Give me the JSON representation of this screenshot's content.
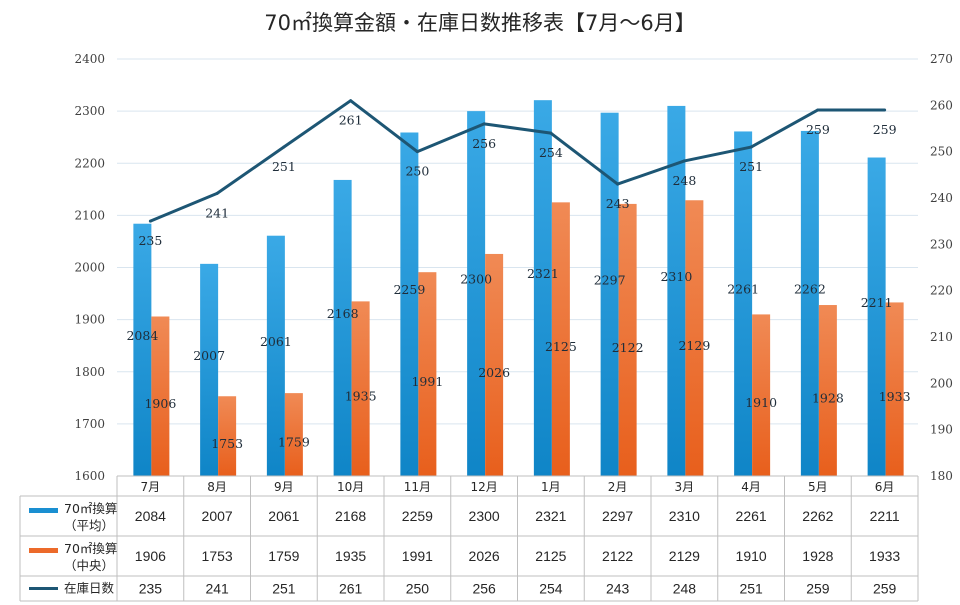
{
  "chart_data": {
    "type": "bar",
    "title": "70㎡換算金額・在庫日数推移表【7月～6月】",
    "categories": [
      "7月",
      "8月",
      "9月",
      "10月",
      "11月",
      "12月",
      "1月",
      "2月",
      "3月",
      "4月",
      "5月",
      "6月"
    ],
    "ylim": [
      1600,
      2400
    ],
    "y2lim": [
      180,
      270
    ],
    "y_ticks": [
      1600,
      1700,
      1800,
      1900,
      2000,
      2100,
      2200,
      2300,
      2400
    ],
    "y2_ticks": [
      180,
      190,
      200,
      210,
      220,
      230,
      240,
      250,
      260,
      270
    ],
    "grid": true,
    "legend": "data-table-bottom",
    "series": [
      {
        "name": "70㎡換算（平均）",
        "label_lines": [
          "70㎡換算",
          "（平均）"
        ],
        "type": "bar",
        "axis": "left",
        "color": "#1a8fd1",
        "values": [
          2084,
          2007,
          2061,
          2168,
          2259,
          2300,
          2321,
          2297,
          2310,
          2261,
          2262,
          2211
        ]
      },
      {
        "name": "70㎡換算（中央）",
        "label_lines": [
          "70㎡換算",
          "（中央）"
        ],
        "type": "bar",
        "axis": "left",
        "color": "#ec6a2a",
        "values": [
          1906,
          1753,
          1759,
          1935,
          1991,
          2026,
          2125,
          2122,
          2129,
          1910,
          1928,
          1933
        ]
      },
      {
        "name": "在庫日数",
        "label_lines": [
          "在庫日数"
        ],
        "type": "line",
        "axis": "right",
        "color": "#1d5674",
        "values": [
          235,
          241,
          251,
          261,
          250,
          256,
          254,
          243,
          248,
          251,
          259,
          259
        ]
      }
    ]
  }
}
